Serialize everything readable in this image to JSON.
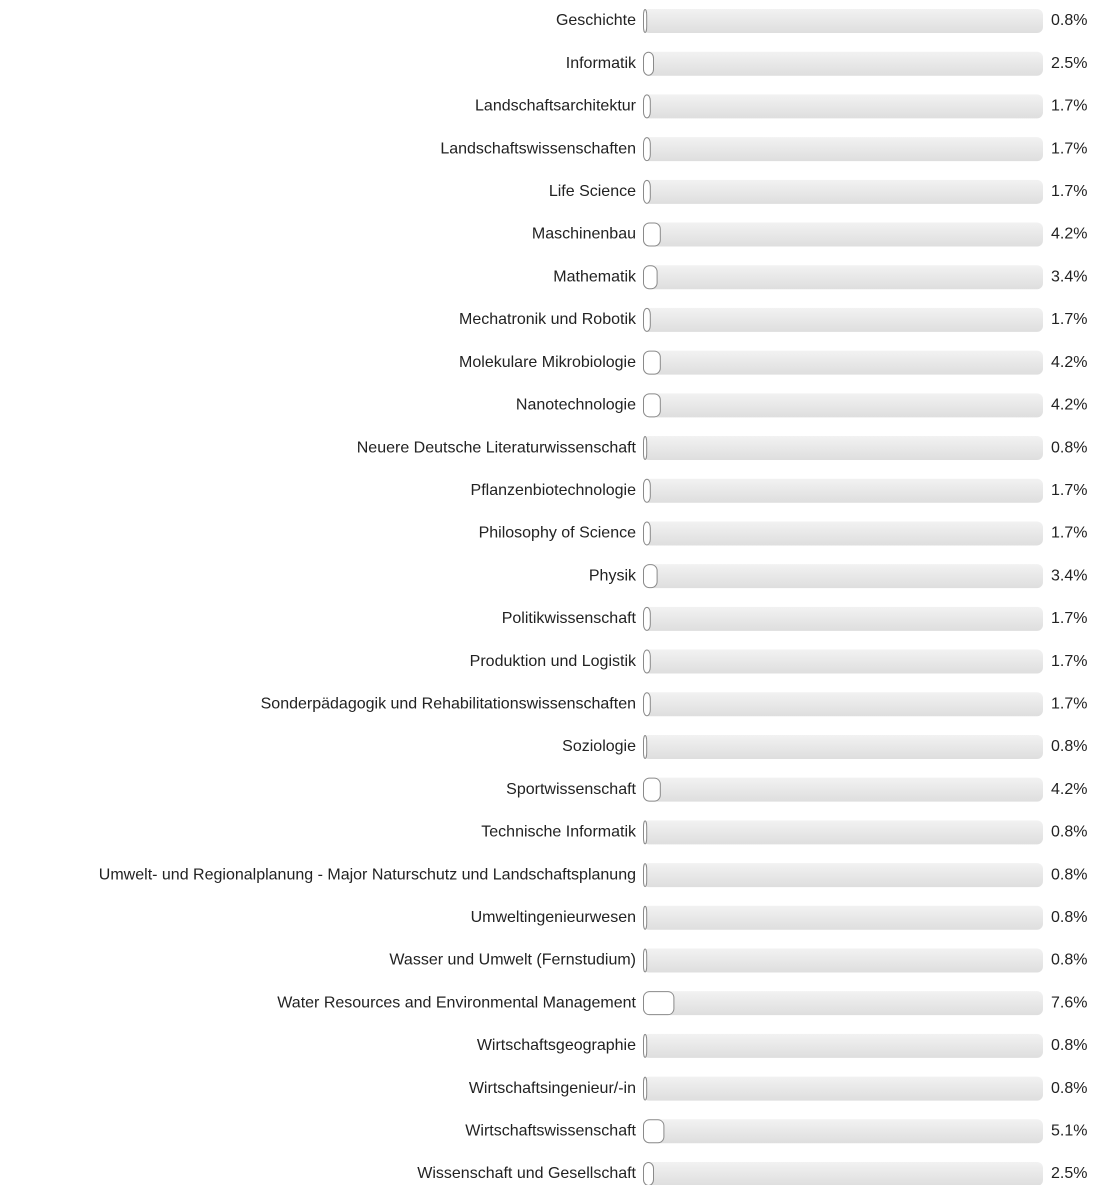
{
  "chart_data": {
    "type": "bar",
    "orientation": "horizontal",
    "categories": [
      "Geschichte",
      "Informatik",
      "Landschaftsarchitektur",
      "Landschaftswissenschaften",
      "Life Science",
      "Maschinenbau",
      "Mathematik",
      "Mechatronik und Robotik",
      "Molekulare Mikrobiologie",
      "Nanotechnologie",
      "Neuere Deutsche Literaturwissenschaft",
      "Pflanzenbiotechnologie",
      "Philosophy of Science",
      "Physik",
      "Politikwissenschaft",
      "Produktion und Logistik",
      "Sonderpädagogik und Rehabilitationswissenschaften",
      "Soziologie",
      "Sportwissenschaft",
      "Technische Informatik",
      "Umwelt- und Regionalplanung - Major Naturschutz und Landschaftsplanung",
      "Umweltingenieurwesen",
      "Wasser und Umwelt (Fernstudium)",
      "Water Resources and Environmental Management",
      "Wirtschaftsgeographie",
      "Wirtschaftsingenieur/-in",
      "Wirtschaftswissenschaft",
      "Wissenschaft und Gesellschaft"
    ],
    "values": [
      0.8,
      2.5,
      1.7,
      1.7,
      1.7,
      4.2,
      3.4,
      1.7,
      4.2,
      4.2,
      0.8,
      1.7,
      1.7,
      3.4,
      1.7,
      1.7,
      1.7,
      0.8,
      4.2,
      0.8,
      0.8,
      0.8,
      0.8,
      7.6,
      0.8,
      0.8,
      5.1,
      2.5
    ],
    "value_labels": [
      "0.8%",
      "2.5%",
      "1.7%",
      "1.7%",
      "1.7%",
      "4.2%",
      "3.4%",
      "1.7%",
      "4.2%",
      "4.2%",
      "0.8%",
      "1.7%",
      "1.7%",
      "3.4%",
      "1.7%",
      "1.7%",
      "1.7%",
      "0.8%",
      "4.2%",
      "0.8%",
      "0.8%",
      "0.8%",
      "0.8%",
      "7.6%",
      "0.8%",
      "0.8%",
      "5.1%",
      "2.5%"
    ],
    "color": "#ffffff",
    "xlim": [
      0,
      100
    ]
  }
}
